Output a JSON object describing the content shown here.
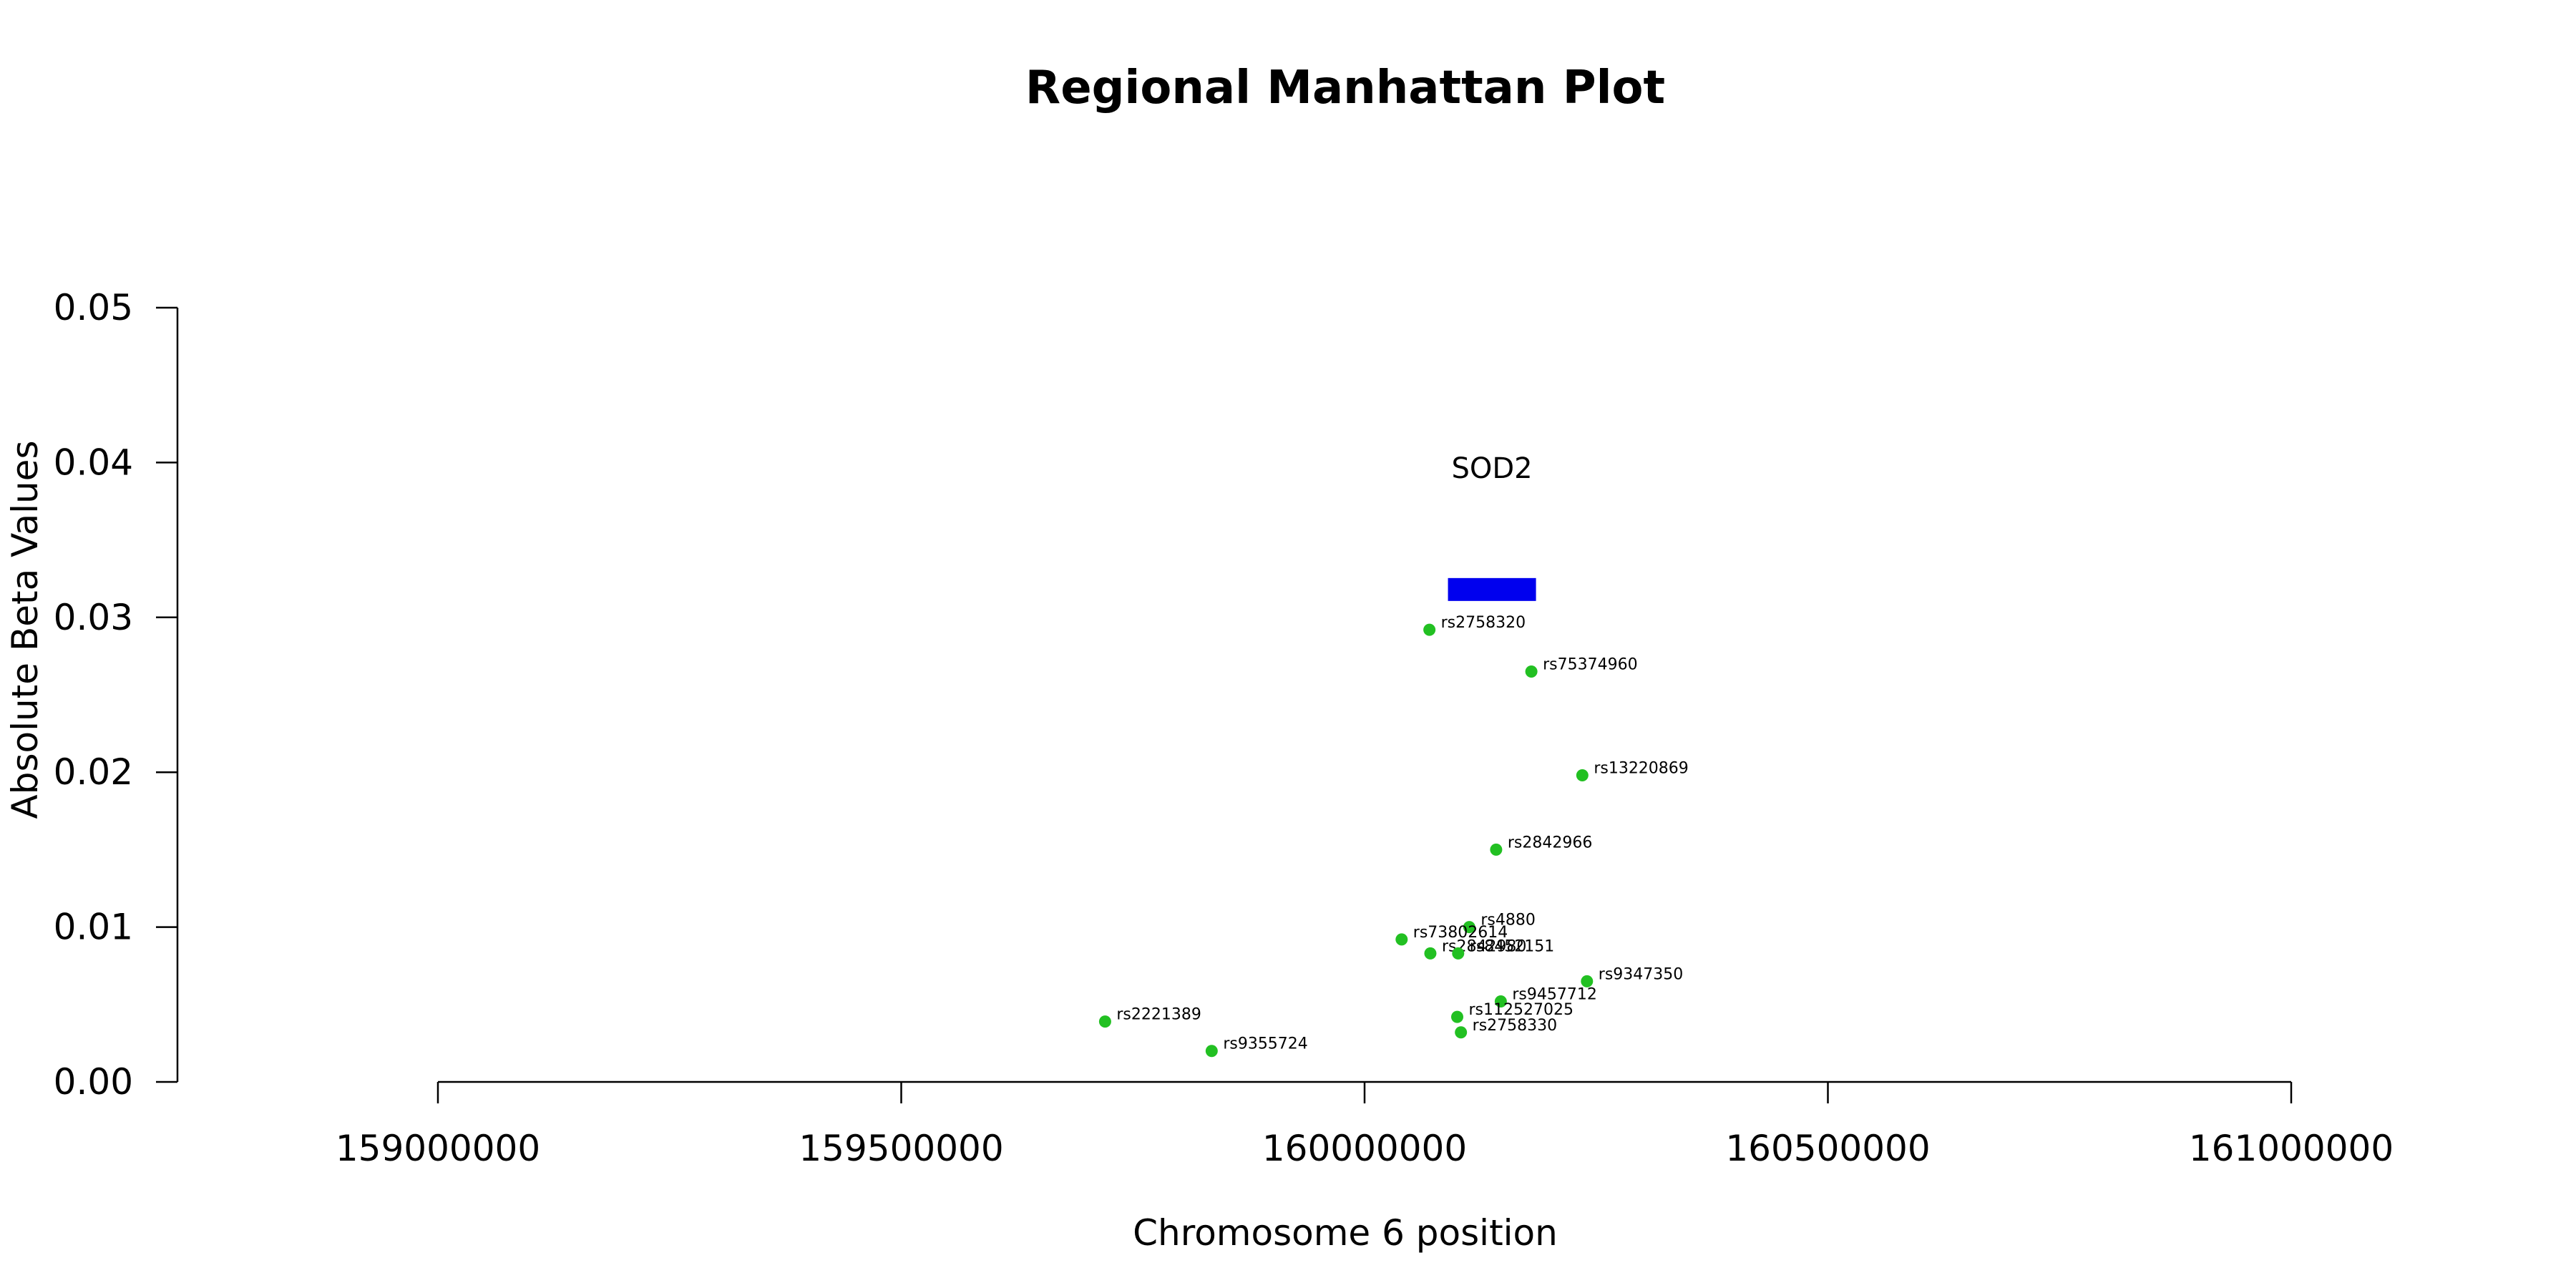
{
  "chart_data": {
    "type": "scatter",
    "title": "Regional Manhattan Plot",
    "xlabel": "Chromosome 6 position",
    "ylabel": "Absolute Beta Values",
    "xlim": [
      159000000,
      161000000
    ],
    "ylim": [
      0,
      0.05
    ],
    "x_ticks": [
      159000000,
      159500000,
      160000000,
      160500000,
      161000000
    ],
    "x_tick_labels": [
      "159000000",
      "159500000",
      "160000000",
      "160500000",
      "161000000"
    ],
    "y_ticks": [
      0,
      0.01,
      0.02,
      0.03,
      0.04,
      0.05
    ],
    "y_tick_labels": [
      "0.00",
      "0.01",
      "0.02",
      "0.03",
      "0.04",
      "0.05"
    ],
    "grid": false,
    "point_color": "#22c022",
    "gene_color": "#0000ee",
    "genes": [
      {
        "label": "SOD2",
        "start": 160090000,
        "end": 160185000,
        "y": 0.0318
      }
    ],
    "points": [
      {
        "label": "rs2758320",
        "x": 160070000,
        "y": 0.0292
      },
      {
        "label": "rs75374960",
        "x": 160180000,
        "y": 0.0265
      },
      {
        "label": "rs13220869",
        "x": 160235000,
        "y": 0.0198
      },
      {
        "label": "rs2842966",
        "x": 160142000,
        "y": 0.015
      },
      {
        "label": "rs4880",
        "x": 160113000,
        "y": 0.01
      },
      {
        "label": "rs73802614",
        "x": 160040000,
        "y": 0.0092
      },
      {
        "label": "rs2842980",
        "x": 160071000,
        "y": 0.0083
      },
      {
        "label": "rs8452151",
        "x": 160101000,
        "y": 0.0083
      },
      {
        "label": "rs9347350",
        "x": 160240000,
        "y": 0.0065
      },
      {
        "label": "rs9457712",
        "x": 160147000,
        "y": 0.0052
      },
      {
        "label": "rs112527025",
        "x": 160100000,
        "y": 0.0042
      },
      {
        "label": "rs2758330",
        "x": 160104000,
        "y": 0.0032
      },
      {
        "label": "rs2221389",
        "x": 159720000,
        "y": 0.0039
      },
      {
        "label": "rs9355724",
        "x": 159835000,
        "y": 0.002
      }
    ]
  }
}
